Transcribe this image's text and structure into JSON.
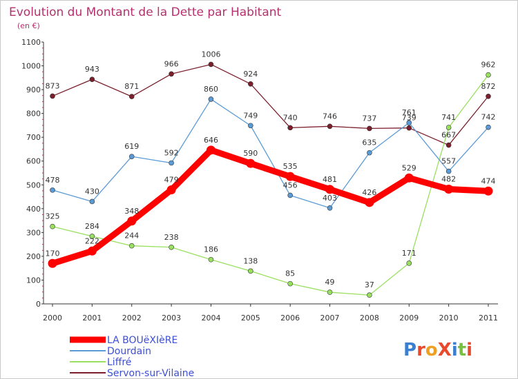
{
  "chart_data": {
    "type": "line",
    "title": "Evolution du Montant de la Dette par Habitant",
    "subtitle": "(en €)",
    "x": [
      "2000",
      "2001",
      "2002",
      "2003",
      "2004",
      "2005",
      "2006",
      "2007",
      "2008",
      "2009",
      "2010",
      "2011"
    ],
    "ylim": [
      0,
      1100
    ],
    "yticks": [
      0,
      100,
      200,
      300,
      400,
      500,
      600,
      700,
      800,
      900,
      1000,
      1100
    ],
    "grid": false,
    "legend_position": "bottom-left",
    "series": [
      {
        "name": "LA BOUëXIèRE",
        "color": "#ff0000",
        "values": [
          170,
          222,
          348,
          479,
          646,
          590,
          535,
          481,
          426,
          529,
          482,
          474
        ]
      },
      {
        "name": "Dourdain",
        "color": "#5b9bd5",
        "values": [
          478,
          430,
          619,
          592,
          860,
          749,
          456,
          403,
          635,
          761,
          557,
          742
        ]
      },
      {
        "name": "Liffré",
        "color": "#99e060",
        "values": [
          325,
          284,
          244,
          238,
          186,
          138,
          85,
          49,
          37,
          171,
          741,
          962
        ]
      },
      {
        "name": "Servon-sur-Vilaine",
        "color": "#7a1f2b",
        "values": [
          873,
          943,
          871,
          966,
          1006,
          924,
          740,
          746,
          737,
          739,
          667,
          872
        ]
      }
    ]
  },
  "logo": {
    "text": "ProXiti"
  }
}
